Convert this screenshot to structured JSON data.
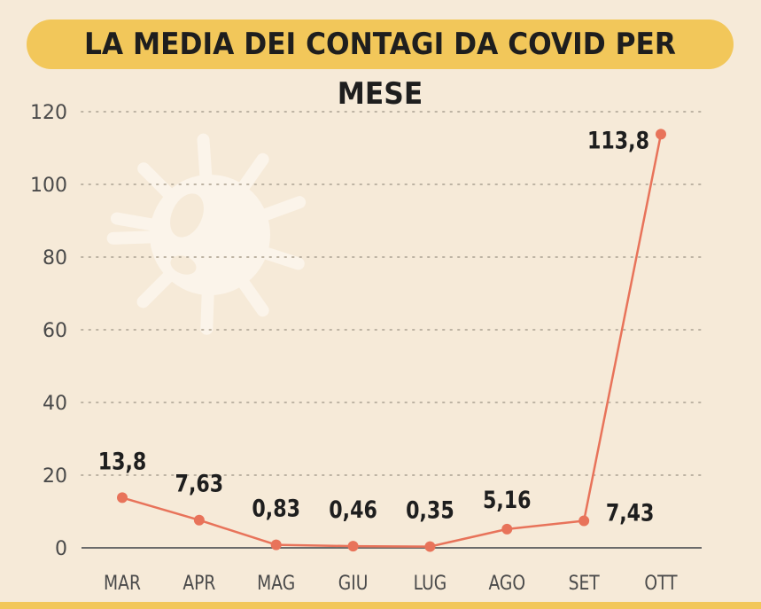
{
  "title": "LA MEDIA DEI CONTAGI DA COVID PER MESE",
  "colors": {
    "background": "#f6ead8",
    "title_pill": "#f2c75a",
    "line": "#e8735a",
    "grid": "#bdb3a3",
    "axis": "#6b6b6b",
    "text": "#1e1e1e",
    "virus_icon": "#fbf4ea"
  },
  "chart_data": {
    "type": "line",
    "title": "LA MEDIA DEI CONTAGI DA COVID PER MESE",
    "categories": [
      "MAR",
      "APR",
      "MAG",
      "GIU",
      "LUG",
      "AGO",
      "SET",
      "OTT"
    ],
    "series": [
      {
        "values": [
          13.8,
          7.63,
          0.83,
          0.46,
          0.35,
          5.16,
          7.43,
          113.8
        ],
        "labels": [
          "13,8",
          "7,63",
          "0,83",
          "0,46",
          "0,35",
          "5,16",
          "7,43",
          "113,8"
        ]
      }
    ],
    "yticks": [
      0,
      20,
      40,
      60,
      80,
      100,
      120
    ],
    "ylim": [
      0,
      120
    ],
    "xlabel": "",
    "ylabel": "",
    "grid": true,
    "legend": "none"
  }
}
